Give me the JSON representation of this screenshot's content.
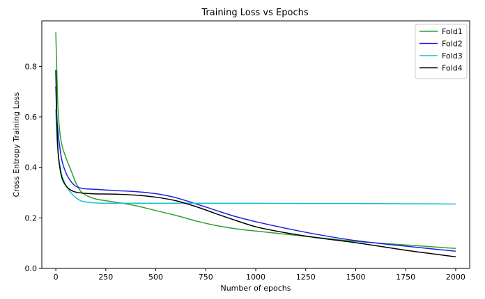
{
  "chart_data": {
    "type": "line",
    "title": "Training Loss vs Epochs",
    "xlabel": "Number of epochs",
    "ylabel": "Cross Entropy Training Loss",
    "xlim": [
      -70,
      2070
    ],
    "ylim": [
      0.0,
      0.98
    ],
    "xticks": [
      0,
      250,
      500,
      750,
      1000,
      1250,
      1500,
      1750,
      2000
    ],
    "xtick_labels": [
      "0",
      "250",
      "500",
      "750",
      "1000",
      "1250",
      "1500",
      "1750",
      "2000"
    ],
    "yticks": [
      0.0,
      0.2,
      0.4,
      0.6,
      0.8
    ],
    "ytick_labels": [
      "0.0",
      "0.2",
      "0.4",
      "0.6",
      "0.8"
    ],
    "grid": false,
    "legend_position": "top-right",
    "series": [
      {
        "name": "Fold1",
        "color": "#2ca02c",
        "x": [
          0,
          5,
          10,
          20,
          30,
          50,
          75,
          100,
          125,
          150,
          200,
          250,
          300,
          400,
          500,
          600,
          700,
          800,
          900,
          1000,
          1250,
          1500,
          1750,
          2000
        ],
        "y": [
          0.935,
          0.78,
          0.65,
          0.54,
          0.49,
          0.44,
          0.39,
          0.34,
          0.305,
          0.29,
          0.275,
          0.268,
          0.262,
          0.248,
          0.229,
          0.21,
          0.188,
          0.17,
          0.157,
          0.148,
          0.127,
          0.107,
          0.093,
          0.079
        ]
      },
      {
        "name": "Fold2",
        "color": "#1f1fe6",
        "x": [
          0,
          5,
          10,
          20,
          30,
          50,
          75,
          100,
          125,
          150,
          200,
          300,
          400,
          500,
          550,
          600,
          700,
          800,
          900,
          1000,
          1250,
          1500,
          1750,
          2000
        ],
        "y": [
          0.72,
          0.6,
          0.55,
          0.48,
          0.43,
          0.38,
          0.345,
          0.325,
          0.318,
          0.315,
          0.313,
          0.308,
          0.304,
          0.296,
          0.289,
          0.28,
          0.256,
          0.23,
          0.205,
          0.185,
          0.143,
          0.11,
          0.088,
          0.068
        ]
      },
      {
        "name": "Fold3",
        "color": "#17becf",
        "x": [
          0,
          5,
          10,
          20,
          30,
          50,
          75,
          100,
          125,
          150,
          200,
          250,
          300,
          500,
          750,
          1000,
          1250,
          1500,
          1750,
          2000
        ],
        "y": [
          0.63,
          0.52,
          0.47,
          0.41,
          0.37,
          0.33,
          0.3,
          0.28,
          0.268,
          0.263,
          0.259,
          0.258,
          0.258,
          0.258,
          0.258,
          0.258,
          0.257,
          0.257,
          0.256,
          0.255
        ]
      },
      {
        "name": "Fold4",
        "color": "#000000",
        "x": [
          0,
          5,
          10,
          20,
          30,
          50,
          75,
          100,
          150,
          200,
          300,
          400,
          500,
          600,
          700,
          800,
          900,
          1000,
          1250,
          1500,
          1750,
          2000
        ],
        "y": [
          0.785,
          0.6,
          0.48,
          0.4,
          0.36,
          0.328,
          0.31,
          0.302,
          0.297,
          0.295,
          0.294,
          0.29,
          0.282,
          0.268,
          0.245,
          0.217,
          0.19,
          0.165,
          0.128,
          0.102,
          0.072,
          0.046
        ]
      }
    ]
  }
}
